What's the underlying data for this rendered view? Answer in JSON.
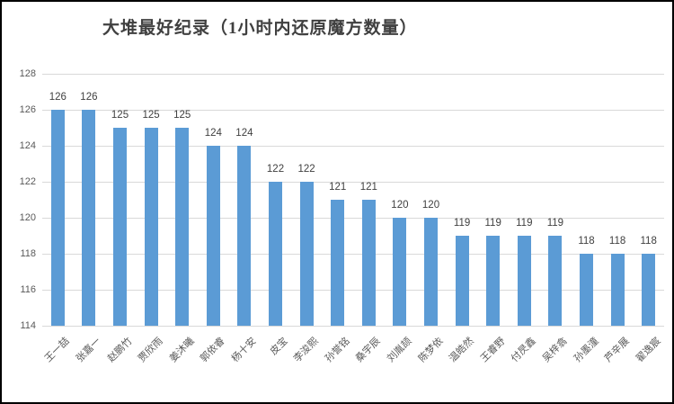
{
  "chart_data": {
    "type": "bar",
    "title": "大堆最好纪录（1小时内还原魔方数量）",
    "categories": [
      "王一喆",
      "张嘉一",
      "赵鹏竹",
      "贾欣雨",
      "姜沐曦",
      "郭依睿",
      "杨十安",
      "皮宝",
      "李浚熙",
      "孙誉铭",
      "桑宇辰",
      "刘胤颉",
      "陈梦依",
      "温皓然",
      "王睿野",
      "付昃鑫",
      "吴梓翕",
      "孙墨潼",
      "芦辛展",
      "翟逸宸"
    ],
    "values": [
      126,
      126,
      125,
      125,
      125,
      124,
      124,
      122,
      122,
      121,
      121,
      120,
      120,
      119,
      119,
      119,
      119,
      118,
      118,
      118
    ],
    "xlabel": "",
    "ylabel": "",
    "ylim": [
      114,
      128
    ],
    "yticks": [
      128,
      126,
      124,
      122,
      120,
      118,
      116,
      114
    ],
    "grid": true,
    "legend": "none",
    "bar_color": "#5b9bd5",
    "value_label_color": "#404040",
    "axis_label_color": "#595959",
    "gridline_color": "#d9d9d9"
  }
}
